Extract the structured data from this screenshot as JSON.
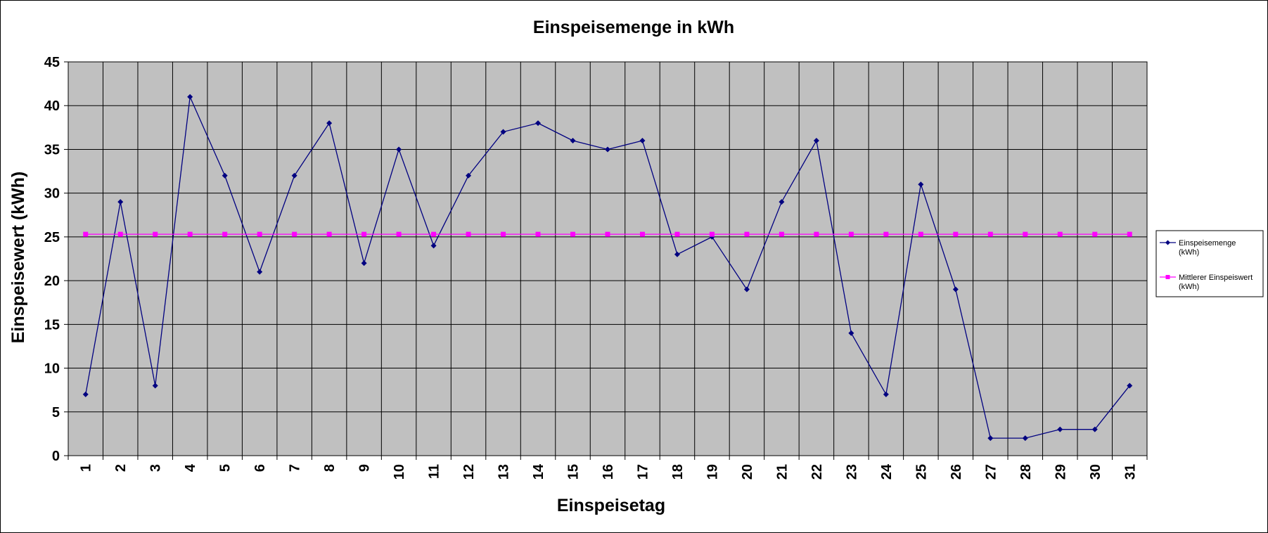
{
  "chart_data": {
    "type": "line",
    "title": "Einspeisemenge in kWh",
    "xlabel": "Einspeisetag",
    "ylabel": "Einspeisewert  (kWh)",
    "categories": [
      "1",
      "2",
      "3",
      "4",
      "5",
      "6",
      "7",
      "8",
      "9",
      "10",
      "11",
      "12",
      "13",
      "14",
      "15",
      "16",
      "17",
      "18",
      "19",
      "20",
      "21",
      "22",
      "23",
      "24",
      "25",
      "26",
      "27",
      "28",
      "29",
      "30",
      "31"
    ],
    "ylim": [
      0,
      45
    ],
    "yticks": [
      "0",
      "5",
      "10",
      "15",
      "20",
      "25",
      "30",
      "35",
      "40",
      "45"
    ],
    "grid": true,
    "legend_position": "right",
    "series": [
      {
        "name": "Einspeisemenge (kWh)",
        "legend_lines": [
          "Einspeisemenge",
          "(kWh)"
        ],
        "color": "#000080",
        "marker": "diamond",
        "values": [
          7,
          29,
          8,
          41,
          32,
          21,
          32,
          38,
          22,
          35,
          24,
          32,
          37,
          38,
          36,
          35,
          36,
          23,
          25,
          19,
          29,
          36,
          14,
          7,
          31,
          19,
          2,
          2,
          3,
          3,
          8
        ]
      },
      {
        "name": "Mittlerer Einspeiswert (kWh)",
        "legend_lines": [
          "Mittlerer Einspeiswert",
          "(kWh)"
        ],
        "color": "#ff00ff",
        "marker": "square",
        "values": [
          25.3,
          25.3,
          25.3,
          25.3,
          25.3,
          25.3,
          25.3,
          25.3,
          25.3,
          25.3,
          25.3,
          25.3,
          25.3,
          25.3,
          25.3,
          25.3,
          25.3,
          25.3,
          25.3,
          25.3,
          25.3,
          25.3,
          25.3,
          25.3,
          25.3,
          25.3,
          25.3,
          25.3,
          25.3,
          25.3,
          25.3
        ]
      }
    ],
    "plot_background": "#c0c0c0"
  }
}
